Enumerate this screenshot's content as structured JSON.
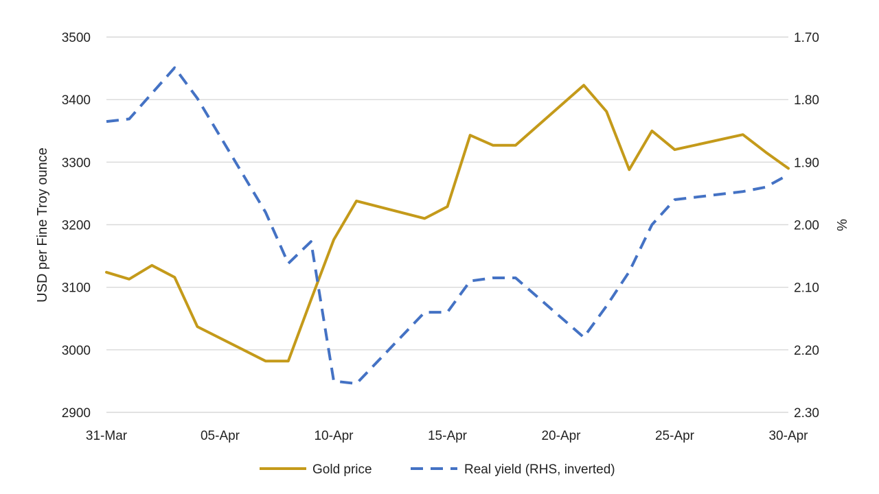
{
  "chart_data": {
    "type": "line",
    "title": "",
    "xlabel": "",
    "ylabel": "USD per Fine Troy ounce",
    "y2label": "%",
    "ylim": [
      2900,
      3500
    ],
    "y2lim": [
      1.7,
      2.3
    ],
    "y2_inverted": true,
    "grid": true,
    "legend_position": "bottom",
    "x_tick_labels": [
      "31-Mar",
      "05-Apr",
      "10-Apr",
      "15-Apr",
      "20-Apr",
      "25-Apr",
      "30-Apr"
    ],
    "y_ticks": [
      "3500",
      "3400",
      "3300",
      "3200",
      "3100",
      "3000",
      "2900"
    ],
    "y2_ticks": [
      "1.70",
      "1.80",
      "1.90",
      "2.00",
      "2.10",
      "2.20",
      "2.30"
    ],
    "x": [
      "31-Mar",
      "01-Apr",
      "02-Apr",
      "03-Apr",
      "04-Apr",
      "07-Apr",
      "08-Apr",
      "09-Apr",
      "10-Apr",
      "11-Apr",
      "14-Apr",
      "15-Apr",
      "16-Apr",
      "17-Apr",
      "18-Apr",
      "21-Apr",
      "22-Apr",
      "23-Apr",
      "24-Apr",
      "25-Apr",
      "28-Apr",
      "29-Apr",
      "30-Apr"
    ],
    "series": [
      {
        "name": "Gold price",
        "axis": "left",
        "color": "#c49a1a",
        "style": "solid",
        "values": [
          3124,
          3113,
          3135,
          3116,
          3037,
          2982,
          2982,
          3080,
          3176,
          3238,
          3210,
          3229,
          3343,
          3327,
          3327,
          3423,
          3381,
          3288,
          3350,
          3320,
          3344,
          3316,
          3290
        ]
      },
      {
        "name": "Real yield (RHS, inverted)",
        "axis": "right",
        "color": "#4472c4",
        "style": "dashed",
        "values": [
          1.835,
          1.831,
          1.79,
          1.749,
          1.798,
          1.98,
          2.062,
          2.027,
          2.25,
          2.254,
          2.14,
          2.14,
          2.09,
          2.085,
          2.085,
          2.18,
          2.13,
          2.075,
          2.0,
          1.96,
          1.947,
          1.94,
          1.92
        ]
      }
    ]
  }
}
